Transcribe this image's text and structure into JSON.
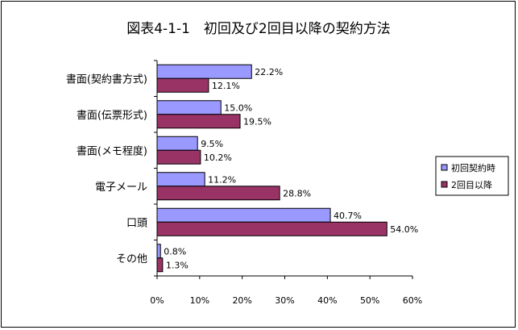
{
  "chart_data": {
    "type": "bar",
    "orientation": "horizontal",
    "title": "図表4-1-1　初回及び2回目以降の契約方法",
    "categories": [
      "書面(契約書方式)",
      "書面(伝票形式)",
      "書面(メモ程度)",
      "電子メール",
      "口頭",
      "その他"
    ],
    "series": [
      {
        "name": "初回契約時",
        "color": "#9999ff",
        "values": [
          22.2,
          15.0,
          9.5,
          11.2,
          40.7,
          0.8
        ],
        "labels": [
          "22.2%",
          "15.0%",
          "9.5%",
          "11.2%",
          "40.7%",
          "0.8%"
        ]
      },
      {
        "name": "2回目以降",
        "color": "#993366",
        "values": [
          12.1,
          19.5,
          10.2,
          28.8,
          54.0,
          1.3
        ],
        "labels": [
          "12.1%",
          "19.5%",
          "10.2%",
          "28.8%",
          "54.0%",
          "1.3%"
        ]
      }
    ],
    "xlim": [
      0,
      60
    ],
    "xticks": [
      "0%",
      "10%",
      "20%",
      "30%",
      "40%",
      "50%",
      "60%"
    ],
    "grid": false,
    "legend": "right"
  }
}
